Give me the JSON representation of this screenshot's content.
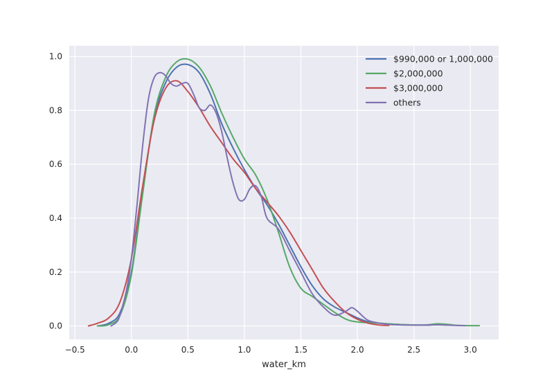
{
  "chart_data": {
    "type": "line",
    "title": "",
    "xlabel": "water_km",
    "ylabel": "",
    "xlim": [
      -0.55,
      3.25
    ],
    "ylim": [
      -0.05,
      1.04
    ],
    "xticks": [
      -0.5,
      0.0,
      0.5,
      1.0,
      1.5,
      2.0,
      2.5,
      3.0
    ],
    "xtick_labels": [
      "−0.5",
      "0.0",
      "0.5",
      "1.0",
      "1.5",
      "2.0",
      "2.5",
      "3.0"
    ],
    "yticks": [
      0.0,
      0.2,
      0.4,
      0.6,
      0.8,
      1.0
    ],
    "ytick_labels": [
      "0.0",
      "0.2",
      "0.4",
      "0.6",
      "0.8",
      "1.0"
    ],
    "grid": true,
    "background": "#eaeaf2",
    "legend_position": "top-right",
    "series": [
      {
        "name": "$990,000 or 1,000,000",
        "color": "#4c72b0",
        "x": [
          -0.3,
          -0.2,
          -0.1,
          0.0,
          0.1,
          0.2,
          0.3,
          0.4,
          0.5,
          0.6,
          0.7,
          0.8,
          0.9,
          1.0,
          1.1,
          1.2,
          1.3,
          1.4,
          1.5,
          1.6,
          1.7,
          1.8,
          1.9,
          2.0,
          2.1,
          2.2,
          2.4,
          2.6,
          2.65
        ],
        "values": [
          0.0,
          0.01,
          0.05,
          0.2,
          0.5,
          0.77,
          0.9,
          0.96,
          0.97,
          0.94,
          0.86,
          0.75,
          0.66,
          0.58,
          0.51,
          0.45,
          0.38,
          0.3,
          0.22,
          0.15,
          0.1,
          0.07,
          0.05,
          0.03,
          0.015,
          0.01,
          0.005,
          0.003,
          0.003
        ]
      },
      {
        "name": "$2,000,000",
        "color": "#55a868",
        "x": [
          -0.3,
          -0.2,
          -0.1,
          0.0,
          0.1,
          0.2,
          0.3,
          0.4,
          0.5,
          0.6,
          0.7,
          0.8,
          0.9,
          1.0,
          1.1,
          1.2,
          1.3,
          1.4,
          1.5,
          1.6,
          1.7,
          1.8,
          1.9,
          2.0,
          2.2,
          2.4,
          2.6,
          2.7,
          2.8,
          2.9,
          3.08
        ],
        "values": [
          0.0,
          0.005,
          0.04,
          0.19,
          0.49,
          0.78,
          0.92,
          0.98,
          0.99,
          0.96,
          0.89,
          0.79,
          0.7,
          0.62,
          0.56,
          0.47,
          0.35,
          0.22,
          0.14,
          0.11,
          0.08,
          0.05,
          0.025,
          0.015,
          0.01,
          0.005,
          0.004,
          0.008,
          0.006,
          0.002,
          0.001
        ]
      },
      {
        "name": "$3,000,000",
        "color": "#c44e52",
        "x": [
          -0.38,
          -0.3,
          -0.2,
          -0.1,
          0.0,
          0.1,
          0.2,
          0.3,
          0.4,
          0.5,
          0.6,
          0.7,
          0.8,
          0.9,
          1.0,
          1.1,
          1.2,
          1.3,
          1.4,
          1.5,
          1.6,
          1.7,
          1.8,
          1.9,
          2.0,
          2.1,
          2.2,
          2.28
        ],
        "values": [
          0.0,
          0.01,
          0.03,
          0.09,
          0.25,
          0.52,
          0.76,
          0.88,
          0.91,
          0.87,
          0.81,
          0.74,
          0.68,
          0.62,
          0.57,
          0.51,
          0.46,
          0.41,
          0.35,
          0.28,
          0.21,
          0.14,
          0.09,
          0.05,
          0.025,
          0.01,
          0.003,
          0.002
        ]
      },
      {
        "name": "others",
        "color": "#8172b2",
        "x": [
          -0.18,
          -0.12,
          -0.08,
          -0.04,
          0.0,
          0.05,
          0.1,
          0.15,
          0.2,
          0.25,
          0.3,
          0.35,
          0.4,
          0.45,
          0.5,
          0.55,
          0.6,
          0.65,
          0.7,
          0.75,
          0.8,
          0.85,
          0.9,
          0.95,
          1.0,
          1.05,
          1.1,
          1.15,
          1.2,
          1.3,
          1.4,
          1.5,
          1.6,
          1.7,
          1.8,
          1.9,
          1.95,
          2.0,
          2.05,
          2.1,
          2.2,
          2.3,
          2.5,
          2.7,
          2.8,
          2.95
        ],
        "values": [
          0.0,
          0.02,
          0.07,
          0.14,
          0.25,
          0.45,
          0.67,
          0.84,
          0.92,
          0.94,
          0.93,
          0.9,
          0.89,
          0.9,
          0.9,
          0.86,
          0.81,
          0.8,
          0.82,
          0.79,
          0.72,
          0.62,
          0.53,
          0.47,
          0.47,
          0.51,
          0.52,
          0.48,
          0.4,
          0.36,
          0.28,
          0.2,
          0.12,
          0.07,
          0.04,
          0.055,
          0.068,
          0.055,
          0.035,
          0.02,
          0.01,
          0.005,
          0.003,
          0.004,
          0.003,
          0.001
        ]
      }
    ]
  }
}
